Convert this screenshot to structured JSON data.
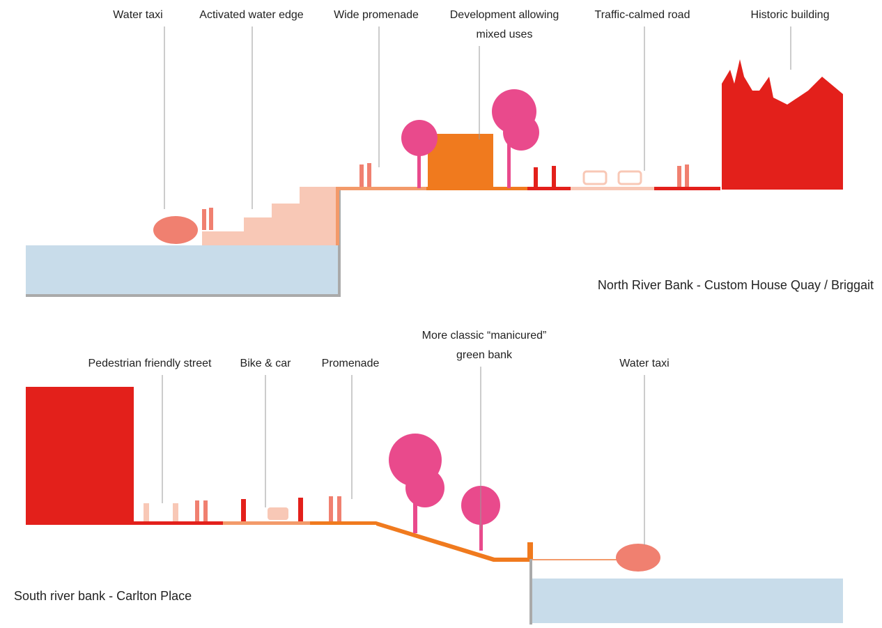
{
  "north": {
    "title": "North River Bank - Custom House Quay / Briggait",
    "labels": [
      {
        "lines": [
          "Water taxi"
        ]
      },
      {
        "lines": [
          "Activated water edge"
        ]
      },
      {
        "lines": [
          "Wide promenade"
        ]
      },
      {
        "lines": [
          "Development allowing",
          "mixed uses"
        ]
      },
      {
        "lines": [
          "Traffic-calmed road"
        ]
      },
      {
        "lines": [
          "Historic building"
        ]
      }
    ]
  },
  "south": {
    "title": "South river bank - Carlton Place",
    "labels": [
      {
        "lines": [
          "Pedestrian friendly street"
        ]
      },
      {
        "lines": [
          "Bike & car"
        ]
      },
      {
        "lines": [
          "Promenade"
        ]
      },
      {
        "lines": [
          "More classic “manicured”",
          "green bank"
        ]
      },
      {
        "lines": [
          "Water taxi"
        ]
      }
    ]
  }
}
